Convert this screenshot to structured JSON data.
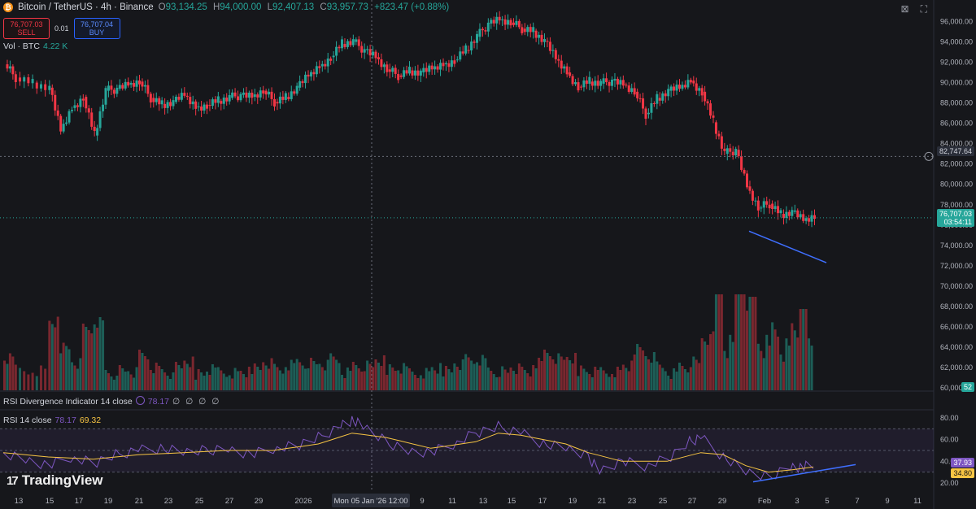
{
  "header": {
    "symbol": "Bitcoin / TetherUS · 4h · Binance",
    "open_label": "O",
    "open": "93,134.25",
    "high_label": "H",
    "high": "94,000.00",
    "low_label": "L",
    "low": "92,407.13",
    "close_label": "C",
    "close": "93,957.73",
    "change": "+823.47 (+0.88%)"
  },
  "trade": {
    "sell_price": "76,707.03",
    "sell_label": "SELL",
    "spread": "0.01",
    "buy_price": "76,707.04",
    "buy_label": "BUY"
  },
  "volume_indicator": {
    "label": "Vol · BTC",
    "value": "4.22 K"
  },
  "rsi_div": {
    "label": "RSI Divergence Indicator 14 close",
    "value": "78.17",
    "dots": "∅ ∅ ∅ ∅"
  },
  "rsi": {
    "label": "RSI 14 close",
    "value": "78.17",
    "ma": "69.32",
    "current": "37.93",
    "current_ma": "34.80"
  },
  "price_labels": {
    "crosshair": "82,747.64",
    "last": "76,707.03",
    "countdown": "03:54:11",
    "volume_last": "52"
  },
  "crosshair_time": "Mon 05 Jan '26   12:00",
  "logo": "TradingView",
  "colors": {
    "up": "#26a69a",
    "down": "#f23645",
    "rsi": "#7e57c2",
    "rsi_ma": "#f6c443",
    "trend": "#3f6fff",
    "bg": "#16171b"
  },
  "chart_data": {
    "type": "candlestick",
    "timeframe": "4h",
    "price_axis": {
      "ticks": [
        "96,000.00",
        "94,000.00",
        "92,000.00",
        "90,000.00",
        "88,000.00",
        "86,000.00",
        "84,000.00",
        "82,000.00",
        "80,000.00",
        "78,000.00",
        "76,000.00",
        "74,000.00",
        "72,000.00",
        "70,000.00",
        "68,000.00",
        "66,000.00",
        "64,000.00",
        "62,000.00",
        "60,000.00"
      ],
      "range": [
        60000,
        97000
      ]
    },
    "rsi_axis": {
      "ticks": [
        "80.00",
        "60.00",
        "40.00",
        "20.00"
      ],
      "range": [
        20,
        80
      ],
      "band": [
        30,
        70
      ]
    },
    "x_ticks": [
      "13",
      "15",
      "17",
      "19",
      "21",
      "23",
      "25",
      "27",
      "29",
      "2026",
      "9",
      "11",
      "13",
      "15",
      "17",
      "19",
      "21",
      "23",
      "25",
      "27",
      "29",
      "Feb",
      "3",
      "5",
      "7",
      "9",
      "11"
    ],
    "price_path": [
      [
        0,
        91800
      ],
      [
        2,
        90500
      ],
      [
        5,
        90000
      ],
      [
        8,
        89500
      ],
      [
        10,
        85200
      ],
      [
        12,
        87500
      ],
      [
        14,
        88600
      ],
      [
        16,
        84800
      ],
      [
        18,
        89200
      ],
      [
        20,
        89400
      ],
      [
        22,
        89800
      ],
      [
        24,
        90100
      ],
      [
        26,
        88500
      ],
      [
        28,
        87900
      ],
      [
        30,
        88100
      ],
      [
        32,
        88700
      ],
      [
        34,
        87600
      ],
      [
        36,
        87800
      ],
      [
        38,
        88200
      ],
      [
        40,
        88500
      ],
      [
        42,
        88800
      ],
      [
        44,
        88600
      ],
      [
        46,
        89200
      ],
      [
        48,
        88100
      ],
      [
        50,
        88600
      ],
      [
        52,
        89500
      ],
      [
        54,
        90600
      ],
      [
        56,
        91600
      ],
      [
        58,
        92500
      ],
      [
        60,
        93800
      ],
      [
        62,
        94000
      ],
      [
        64,
        93200
      ],
      [
        66,
        92500
      ],
      [
        68,
        91300
      ],
      [
        70,
        90700
      ],
      [
        72,
        91200
      ],
      [
        74,
        91000
      ],
      [
        76,
        91300
      ],
      [
        78,
        91800
      ],
      [
        80,
        92200
      ],
      [
        82,
        93200
      ],
      [
        84,
        94500
      ],
      [
        86,
        95800
      ],
      [
        88,
        96200
      ],
      [
        90,
        95900
      ],
      [
        92,
        95300
      ],
      [
        94,
        95100
      ],
      [
        96,
        94100
      ],
      [
        98,
        92300
      ],
      [
        100,
        91000
      ],
      [
        102,
        89600
      ],
      [
        104,
        90100
      ],
      [
        106,
        89900
      ],
      [
        108,
        90200
      ],
      [
        110,
        89800
      ],
      [
        112,
        89100
      ],
      [
        114,
        86900
      ],
      [
        116,
        88500
      ],
      [
        118,
        89200
      ],
      [
        120,
        89400
      ],
      [
        122,
        90200
      ],
      [
        124,
        89100
      ],
      [
        126,
        86100
      ],
      [
        128,
        83000
      ],
      [
        130,
        83400
      ],
      [
        132,
        79800
      ],
      [
        134,
        77700
      ],
      [
        136,
        78100
      ],
      [
        138,
        77100
      ],
      [
        140,
        77300
      ],
      [
        142,
        76400
      ],
      [
        144,
        76800
      ]
    ],
    "trendline_price": {
      "from": [
        "Jan 30",
        75400
      ],
      "to": [
        "Feb 4",
        72300
      ]
    },
    "trendline_rsi": {
      "from": [
        "Jan 31",
        21
      ],
      "to": [
        "Feb 7",
        37
      ]
    },
    "rsi_path": [
      [
        0,
        48
      ],
      [
        4,
        42
      ],
      [
        8,
        36
      ],
      [
        12,
        44
      ],
      [
        16,
        38
      ],
      [
        20,
        46
      ],
      [
        24,
        50
      ],
      [
        28,
        52
      ],
      [
        32,
        48
      ],
      [
        36,
        50
      ],
      [
        40,
        52
      ],
      [
        44,
        46
      ],
      [
        48,
        52
      ],
      [
        52,
        54
      ],
      [
        56,
        62
      ],
      [
        60,
        72
      ],
      [
        62,
        78
      ],
      [
        64,
        72
      ],
      [
        68,
        58
      ],
      [
        72,
        50
      ],
      [
        76,
        48
      ],
      [
        80,
        56
      ],
      [
        84,
        66
      ],
      [
        88,
        72
      ],
      [
        92,
        66
      ],
      [
        96,
        56
      ],
      [
        100,
        52
      ],
      [
        104,
        44
      ],
      [
        106,
        32
      ],
      [
        110,
        40
      ],
      [
        114,
        36
      ],
      [
        118,
        42
      ],
      [
        122,
        58
      ],
      [
        124,
        62
      ],
      [
        128,
        44
      ],
      [
        132,
        30
      ],
      [
        136,
        25
      ],
      [
        140,
        36
      ],
      [
        142,
        34
      ],
      [
        144,
        38
      ]
    ],
    "rsi_ma_path": [
      [
        0,
        48
      ],
      [
        8,
        44
      ],
      [
        16,
        42
      ],
      [
        24,
        46
      ],
      [
        32,
        48
      ],
      [
        40,
        50
      ],
      [
        48,
        50
      ],
      [
        56,
        56
      ],
      [
        62,
        66
      ],
      [
        68,
        62
      ],
      [
        76,
        52
      ],
      [
        84,
        58
      ],
      [
        88,
        66
      ],
      [
        92,
        64
      ],
      [
        100,
        56
      ],
      [
        104,
        48
      ],
      [
        110,
        40
      ],
      [
        118,
        40
      ],
      [
        124,
        48
      ],
      [
        128,
        46
      ],
      [
        132,
        36
      ],
      [
        136,
        30
      ],
      [
        140,
        32
      ],
      [
        144,
        34.8
      ]
    ]
  }
}
